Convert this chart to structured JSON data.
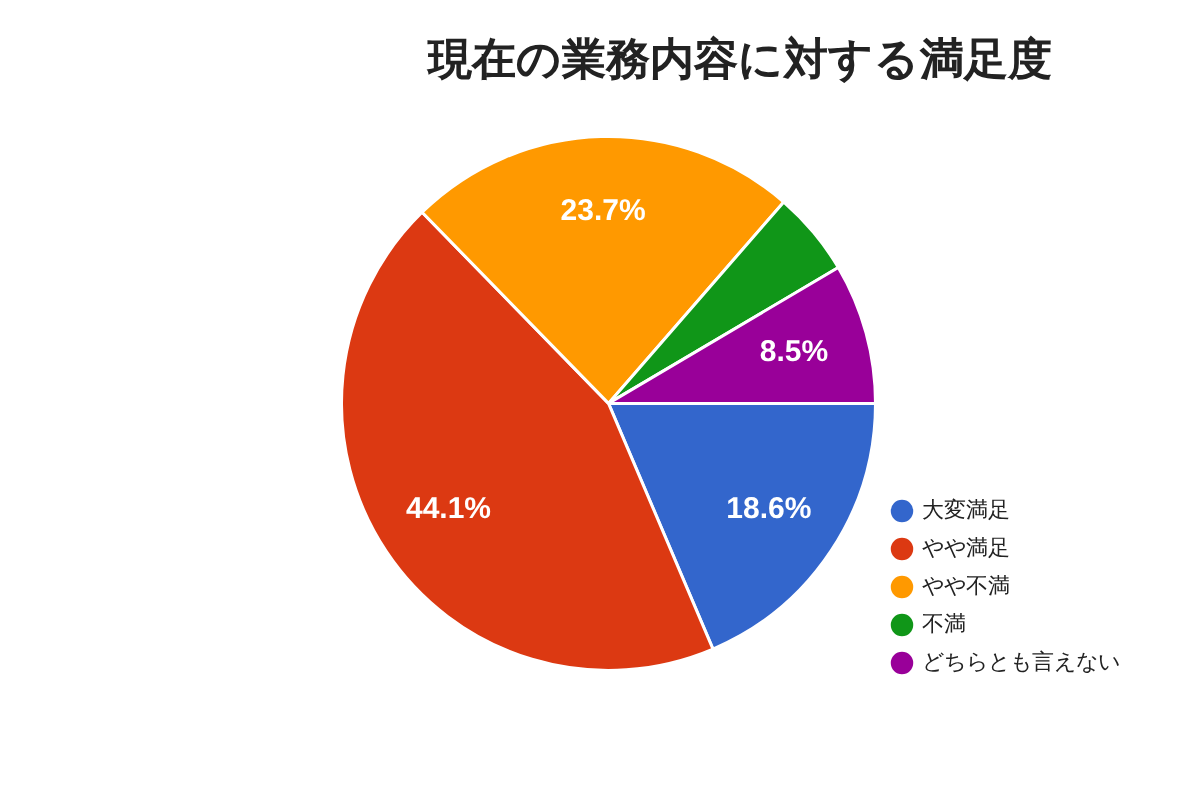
{
  "chart_data": {
    "type": "pie",
    "title": "現在の業務内容に対する満足度",
    "categories": [
      "大変満足",
      "やや満足",
      "やや不満",
      "不満",
      "どちらとも言えない"
    ],
    "values": [
      18.6,
      44.1,
      23.7,
      5.1,
      8.5
    ],
    "colors": [
      "#3366cc",
      "#dc3912",
      "#ff9900",
      "#109618",
      "#990099"
    ],
    "value_labels": [
      "18.6%",
      "44.1%",
      "23.7%",
      null,
      "8.5%"
    ],
    "legend": "bottom right"
  }
}
